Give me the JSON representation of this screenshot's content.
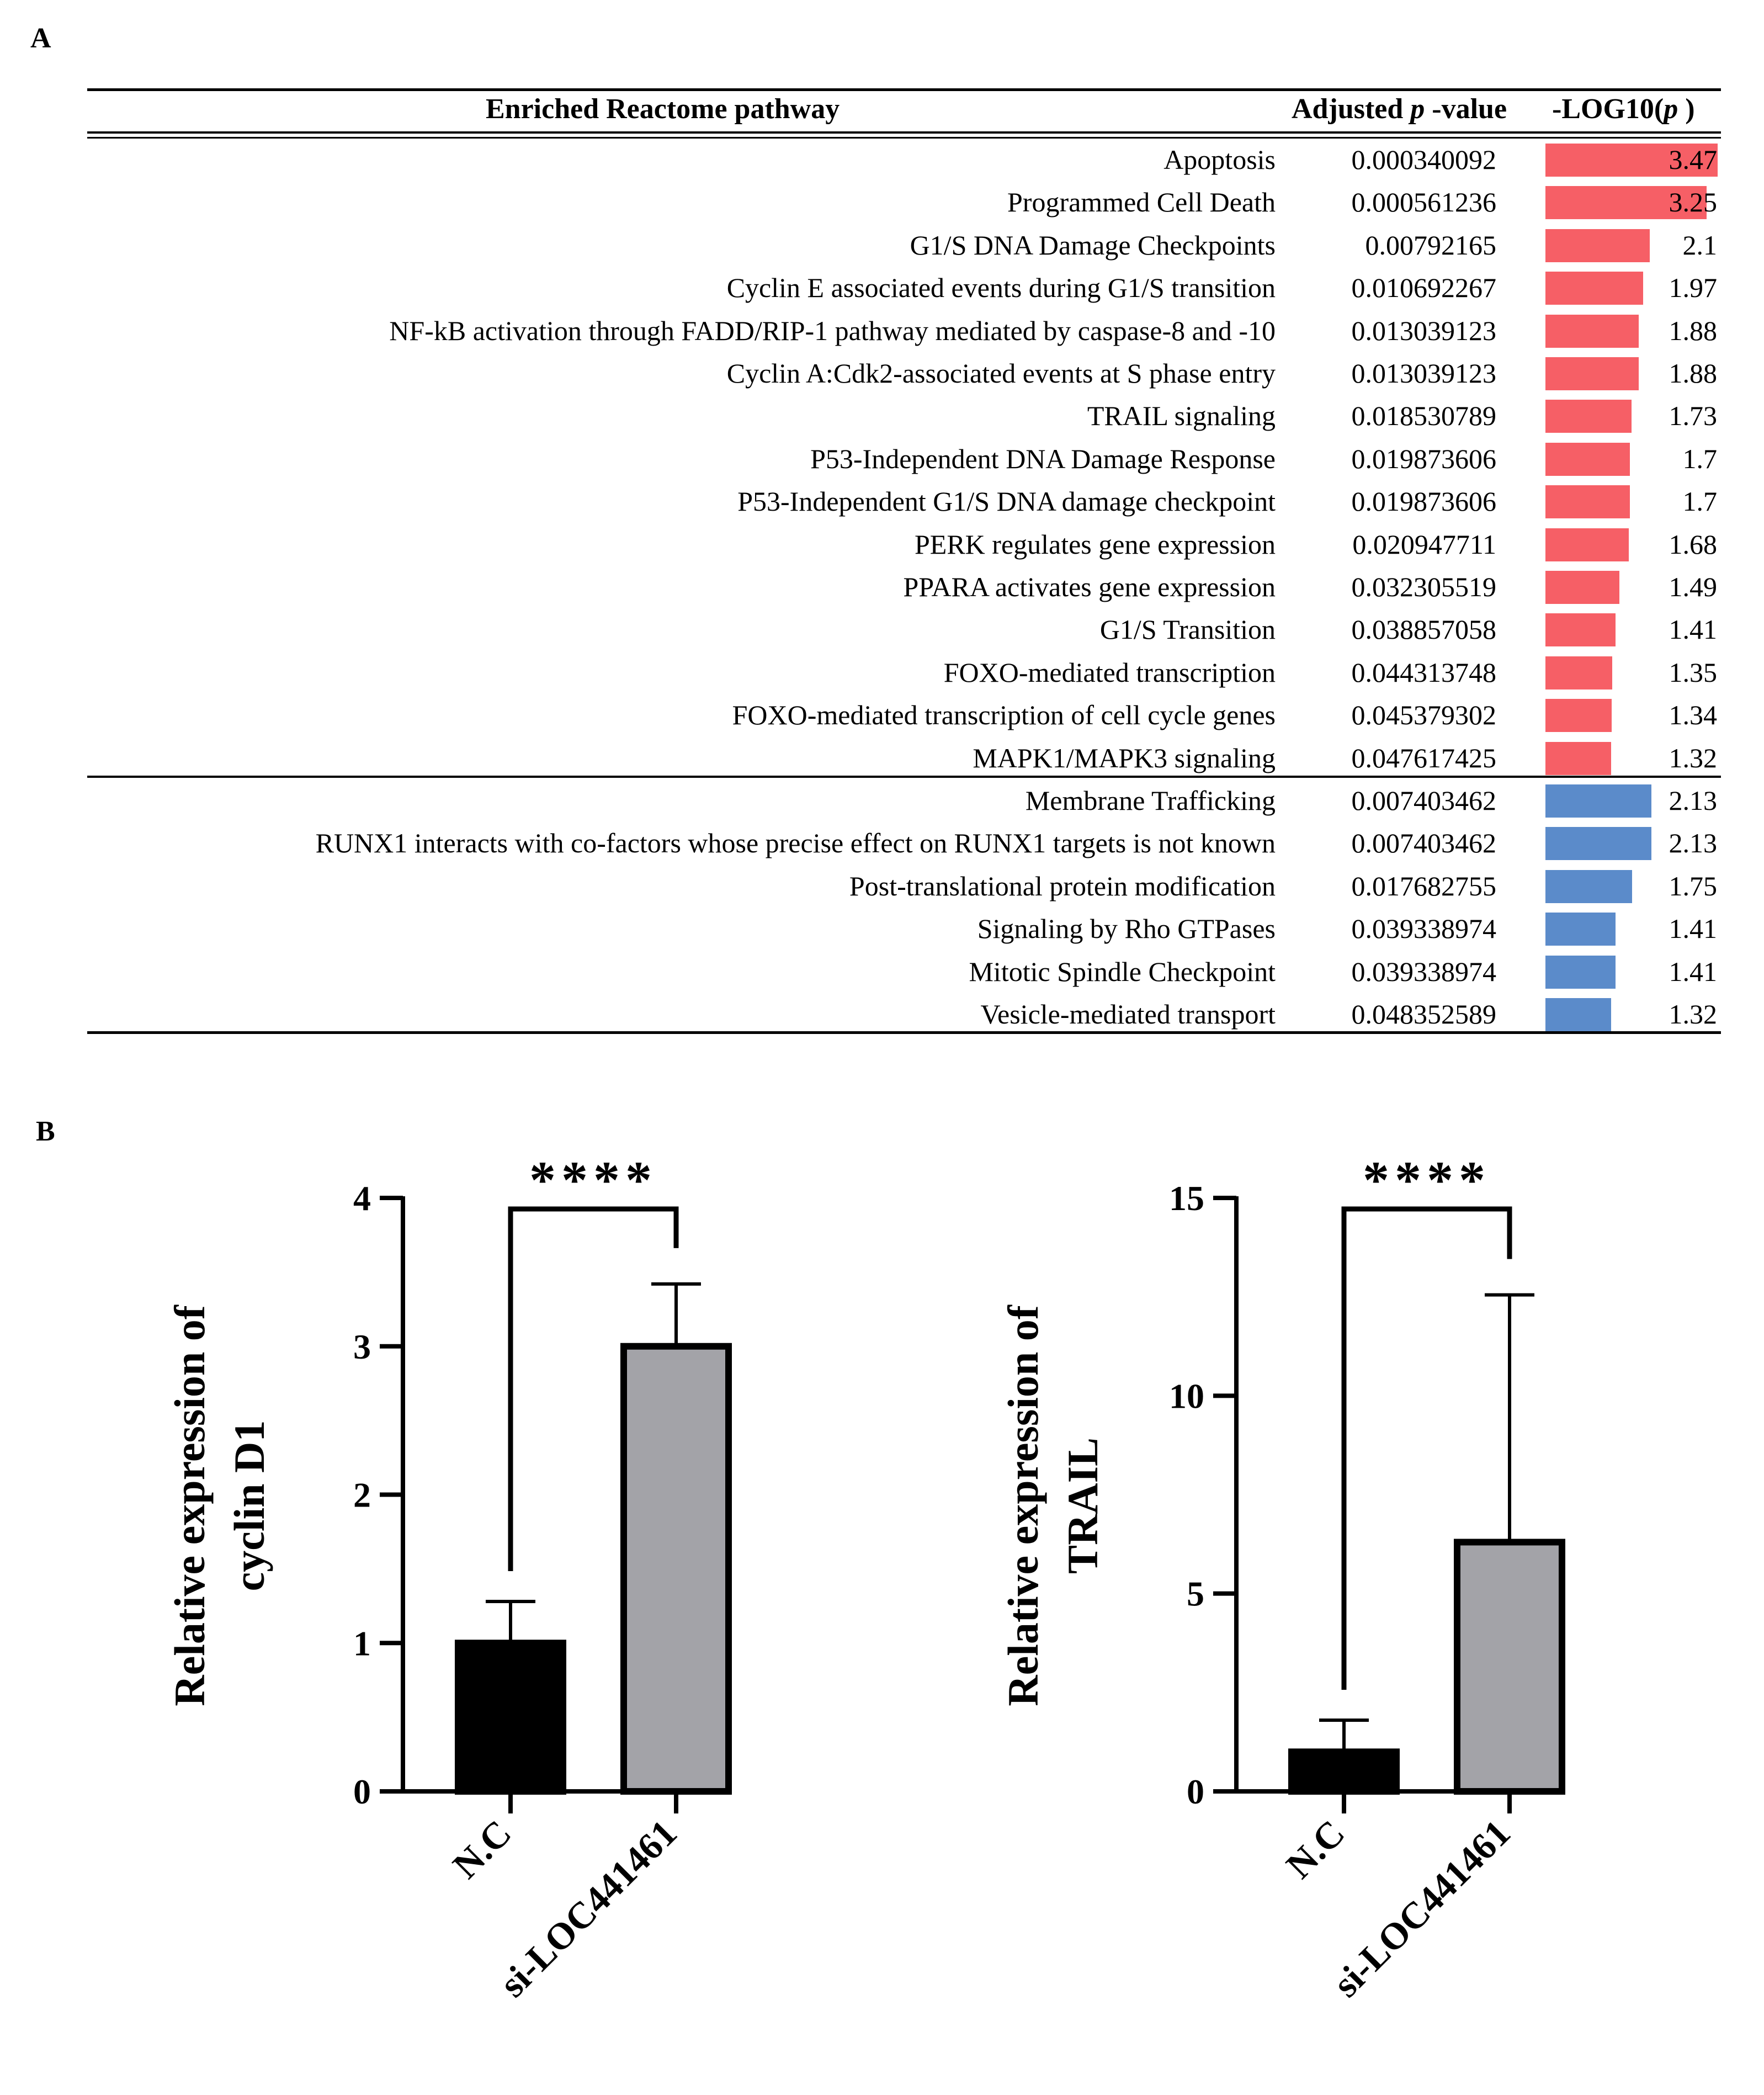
{
  "panel_a": {
    "letter": "A",
    "headers": {
      "pathway": "Enriched Reactome pathway",
      "padj_prefix": "Adjusted ",
      "padj_p": "p",
      "padj_suffix": " -value",
      "log": "-LOG10(",
      "log_p": "p",
      "log_close": " )"
    },
    "colors": {
      "up": "#f65f66",
      "down": "#5b8bca"
    },
    "max_log": 3.47
  },
  "chart_data": [
    {
      "type": "table",
      "title": "Enriched Reactome pathway",
      "columns": [
        "Enriched Reactome pathway",
        "Adjusted p -value",
        "-LOG10(p )"
      ],
      "groups": [
        {
          "name": "up",
          "rows": [
            {
              "pathway": "Apoptosis",
              "padj": "0.000340092",
              "log": 3.47,
              "log_label": "3.47"
            },
            {
              "pathway": "Programmed Cell Death",
              "padj": "0.000561236",
              "log": 3.25,
              "log_label": "3.25"
            },
            {
              "pathway": "G1/S DNA Damage Checkpoints",
              "padj": "0.00792165",
              "log": 2.1,
              "log_label": "2.1"
            },
            {
              "pathway": "Cyclin E associated events during G1/S transition",
              "padj": "0.010692267",
              "log": 1.97,
              "log_label": "1.97"
            },
            {
              "pathway": "NF-kB activation through FADD/RIP-1 pathway mediated by caspase-8 and -10",
              "padj": "0.013039123",
              "log": 1.88,
              "log_label": "1.88"
            },
            {
              "pathway": "Cyclin A:Cdk2-associated events at S phase entry",
              "padj": "0.013039123",
              "log": 1.88,
              "log_label": "1.88"
            },
            {
              "pathway": "TRAIL  signaling",
              "padj": "0.018530789",
              "log": 1.73,
              "log_label": "1.73"
            },
            {
              "pathway": "P53-Independent DNA Damage Response",
              "padj": "0.019873606",
              "log": 1.7,
              "log_label": "1.7"
            },
            {
              "pathway": "P53-Independent G1/S DNA damage checkpoint",
              "padj": "0.019873606",
              "log": 1.7,
              "log_label": "1.7"
            },
            {
              "pathway": "PERK regulates gene expression",
              "padj": "0.020947711",
              "log": 1.68,
              "log_label": "1.68"
            },
            {
              "pathway": "PPARA activates gene expression",
              "padj": "0.032305519",
              "log": 1.49,
              "log_label": "1.49"
            },
            {
              "pathway": "G1/S Transition",
              "padj": "0.038857058",
              "log": 1.41,
              "log_label": "1.41"
            },
            {
              "pathway": "FOXO-mediated transcription",
              "padj": "0.044313748",
              "log": 1.35,
              "log_label": "1.35"
            },
            {
              "pathway": "FOXO-mediated transcription of cell cycle genes",
              "padj": "0.045379302",
              "log": 1.34,
              "log_label": "1.34"
            },
            {
              "pathway": "MAPK1/MAPK3 signaling",
              "padj": "0.047617425",
              "log": 1.32,
              "log_label": "1.32"
            }
          ]
        },
        {
          "name": "down",
          "rows": [
            {
              "pathway": "Membrane Trafficking",
              "padj": "0.007403462",
              "log": 2.13,
              "log_label": "2.13"
            },
            {
              "pathway": "RUNX1 interacts with co-factors whose precise effect on RUNX1 targets is not known",
              "padj": "0.007403462",
              "log": 2.13,
              "log_label": "2.13"
            },
            {
              "pathway": "Post-translational protein modification",
              "padj": "0.017682755",
              "log": 1.75,
              "log_label": "1.75"
            },
            {
              "pathway": "Signaling by Rho GTPases",
              "padj": "0.039338974",
              "log": 1.41,
              "log_label": "1.41"
            },
            {
              "pathway": "Mitotic Spindle Checkpoint",
              "padj": "0.039338974",
              "log": 1.41,
              "log_label": "1.41"
            },
            {
              "pathway": "Vesicle-mediated transport",
              "padj": "0.048352589",
              "log": 1.32,
              "log_label": "1.32"
            }
          ]
        }
      ]
    },
    {
      "type": "bar",
      "ylabel_lines": [
        "Relative expression of",
        "cyclin D1"
      ],
      "categories": [
        "N.C",
        "si-LOC441461"
      ],
      "values": [
        1.0,
        3.0
      ],
      "error": [
        0.28,
        0.42
      ],
      "ylim": [
        0,
        4
      ],
      "yticks": [
        0,
        1,
        2,
        3,
        4
      ],
      "bar_colors": [
        "#000000",
        "#a3a3a8"
      ],
      "significance": "****"
    },
    {
      "type": "bar",
      "ylabel_lines": [
        "Relative expression of",
        "TRAIL"
      ],
      "categories": [
        "N.C",
        "si-LOC441461"
      ],
      "values": [
        1.0,
        6.3
      ],
      "error": [
        0.8,
        6.25
      ],
      "ylim": [
        0,
        15
      ],
      "yticks": [
        0,
        5,
        10,
        15
      ],
      "bar_colors": [
        "#000000",
        "#a3a3a8"
      ],
      "significance": "****"
    }
  ],
  "panel_b": {
    "letter": "B"
  }
}
